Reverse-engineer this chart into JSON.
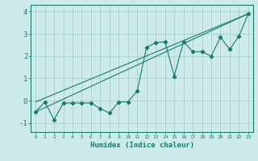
{
  "xlabel": "Humidex (Indice chaleur)",
  "ylabel": "",
  "background_color": "#cdeaea",
  "grid_color": "#aacfcf",
  "line_color": "#1a7a6e",
  "xlim": [
    -0.5,
    23.5
  ],
  "ylim": [
    -1.4,
    4.3
  ],
  "xticks": [
    0,
    1,
    2,
    3,
    4,
    5,
    6,
    7,
    8,
    9,
    10,
    11,
    12,
    13,
    14,
    15,
    16,
    17,
    18,
    19,
    20,
    21,
    22,
    23
  ],
  "yticks": [
    -1,
    0,
    1,
    2,
    3,
    4
  ],
  "line1_x": [
    0,
    1,
    2,
    3,
    4,
    5,
    6,
    7,
    8,
    9,
    10,
    11,
    12,
    13,
    14,
    15,
    16,
    17,
    18,
    19,
    20,
    21,
    22,
    23
  ],
  "line1_y": [
    -0.5,
    -0.05,
    -0.85,
    -0.1,
    -0.1,
    -0.1,
    -0.1,
    -0.35,
    -0.55,
    -0.05,
    -0.05,
    0.45,
    2.4,
    2.6,
    2.65,
    1.1,
    2.65,
    2.2,
    2.2,
    2.0,
    2.85,
    2.3,
    2.9,
    3.9
  ],
  "line2_x": [
    0,
    23
  ],
  "line2_y": [
    -0.5,
    3.9
  ],
  "line3_x": [
    0,
    23
  ],
  "line3_y": [
    -0.05,
    3.9
  ]
}
